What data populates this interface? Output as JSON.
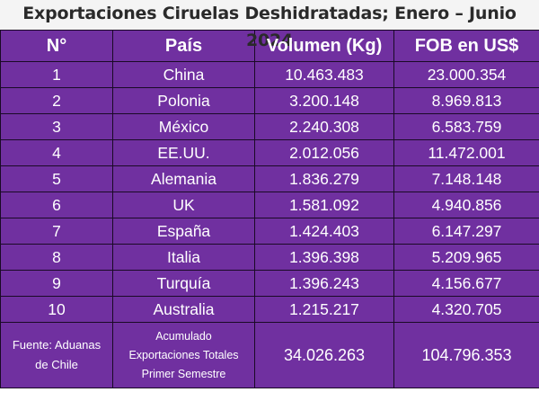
{
  "title": "Exportaciones Ciruelas Deshidratadas; Enero – Junio 2024",
  "headers": [
    "N°",
    "País",
    "Volumen (Kg)",
    "FOB en US$"
  ],
  "rows": [
    {
      "n": "1",
      "country": "China",
      "volume": "10.463.483",
      "fob": "23.000.354"
    },
    {
      "n": "2",
      "country": "Polonia",
      "volume": "3.200.148",
      "fob": "8.969.813"
    },
    {
      "n": "3",
      "country": "México",
      "volume": "2.240.308",
      "fob": "6.583.759"
    },
    {
      "n": "4",
      "country": "EE.UU.",
      "volume": "2.012.056",
      "fob": "11.472.001"
    },
    {
      "n": "5",
      "country": "Alemania",
      "volume": "1.836.279",
      "fob": "7.148.148"
    },
    {
      "n": "6",
      "country": "UK",
      "volume": "1.581.092",
      "fob": "4.940.856"
    },
    {
      "n": "7",
      "country": "España",
      "volume": "1.424.403",
      "fob": "6.147.297"
    },
    {
      "n": "8",
      "country": "Italia",
      "volume": "1.396.398",
      "fob": "5.209.965"
    },
    {
      "n": "9",
      "country": "Turquía",
      "volume": "1.396.243",
      "fob": "4.156.677"
    },
    {
      "n": "10",
      "country": "Australia",
      "volume": "1.215.217",
      "fob": "4.320.705"
    }
  ],
  "footer": {
    "source_line1": "Fuente: Aduanas",
    "source_line2": "de Chile",
    "label_line1": "Acumulado",
    "label_line2": "Exportaciones Totales",
    "label_line3": "Primer Semestre",
    "total_volume": "34.026.263",
    "total_fob": "104.796.353"
  },
  "colors": {
    "cell_bg": "#7030a0",
    "text": "#ffffff",
    "border": "#1a0a26"
  }
}
